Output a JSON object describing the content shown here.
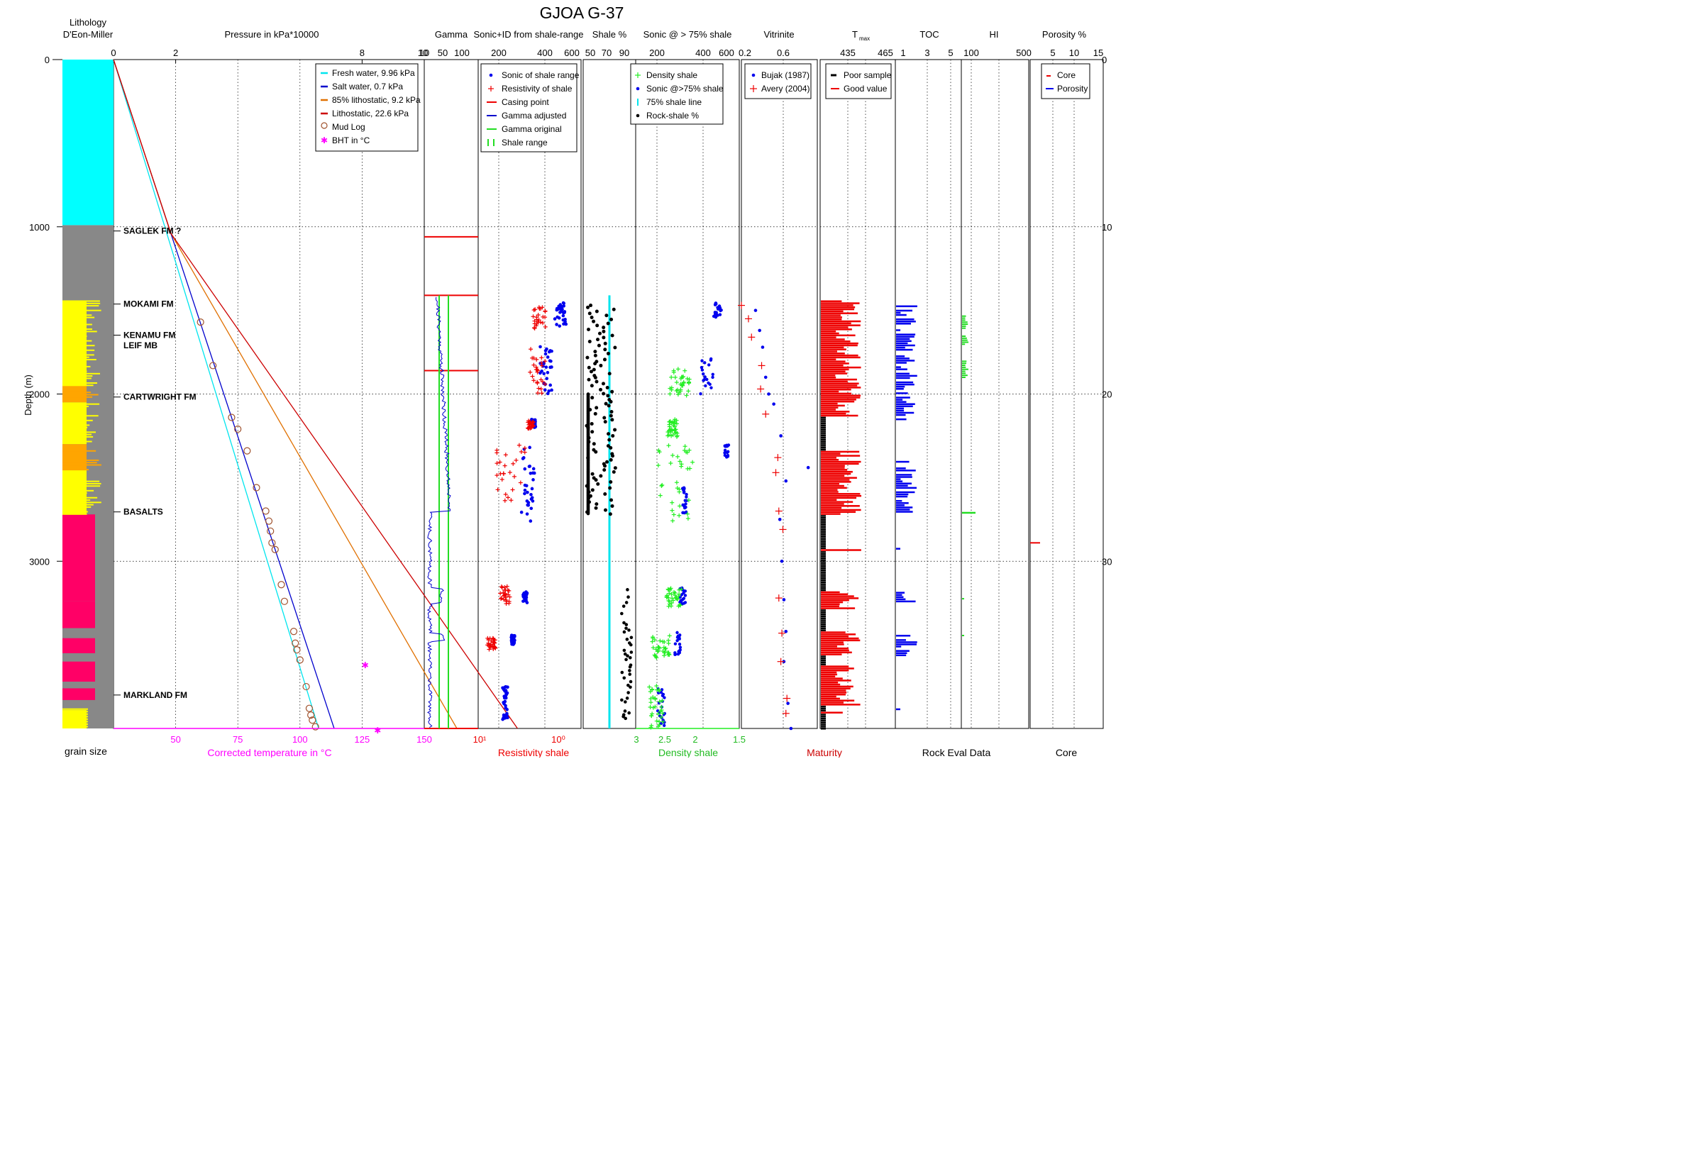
{
  "chart_data": {
    "type": "line",
    "title": "GJOA G-37",
    "y_axis": {
      "label": "Depth (m)",
      "range_m": [
        0,
        4000
      ],
      "ticks": [
        "0",
        "1000",
        "2000",
        "3000"
      ],
      "right_ticks": [
        "0",
        "10",
        "20",
        "30"
      ]
    },
    "lithology": {
      "header": [
        "Lithology",
        "D'Eon-Miller"
      ],
      "bottom_label": "grain size",
      "intervals": [
        {
          "from": 0,
          "to": 990,
          "color": "#00FFFF"
        },
        {
          "from": 1440,
          "to": 1950,
          "color": "#FFFF00"
        },
        {
          "from": 1950,
          "to": 2050,
          "color": "#FFA500"
        },
        {
          "from": 2050,
          "to": 2300,
          "color": "#FFFF00"
        },
        {
          "from": 2300,
          "to": 2450,
          "color": "#FFA500"
        },
        {
          "from": 2450,
          "to": 2720,
          "color": "#FFFF00"
        },
        {
          "from": 2720,
          "to": 3240,
          "color": "#FF0066"
        },
        {
          "from": 3240,
          "to": 3400,
          "color": "#FF0066"
        },
        {
          "from": 3460,
          "to": 3550,
          "color": "#FF0066"
        },
        {
          "from": 3600,
          "to": 3720,
          "color": "#FF0066"
        },
        {
          "from": 3760,
          "to": 3830,
          "color": "#FF0066"
        },
        {
          "from": 3890,
          "to": 4000,
          "color": "#FFFF00"
        }
      ]
    },
    "formations": [
      {
        "name": "SAGLEK FM ?",
        "depth": 1025
      },
      {
        "name": "MOKAMI FM",
        "depth": 1462
      },
      {
        "name": "KENAMU FM",
        "depth": 1648
      },
      {
        "name": "LEIF MB",
        "depth": 1710
      },
      {
        "name": "CARTWRIGHT FM",
        "depth": 2018
      },
      {
        "name": "BASALTS",
        "depth": 2705
      },
      {
        "name": "MARKLAND FM",
        "depth": 3800
      }
    ],
    "pressure": {
      "label": "Pressure in kPa*10000",
      "ticks": [
        "0",
        "2",
        "8",
        "10"
      ],
      "range": [
        0,
        10
      ],
      "bottom_axis": {
        "label": "Corrected temperature in °C",
        "ticks": [
          "50",
          "75",
          "100",
          "125",
          "150"
        ]
      },
      "legend": [
        {
          "label": "Fresh water, 9.96 kPa",
          "color": "#00E5EE",
          "kind": "line"
        },
        {
          "label": "Salt water, 0.7 kPa",
          "color": "#0000CC",
          "kind": "line"
        },
        {
          "label": "85% lithostatic, 9.2 kPa",
          "color": "#E07000",
          "kind": "line"
        },
        {
          "label": "Lithostatic, 22.6 kPa",
          "color": "#CC0000",
          "kind": "line"
        },
        {
          "label": "Mud Log",
          "color": "#A0522D",
          "kind": "circle"
        },
        {
          "label": "BHT in °C",
          "color": "#FF00FF",
          "kind": "star"
        }
      ],
      "series": [
        {
          "name": "Fresh water, 9.96 kPa",
          "points": [
            [
              0,
              0
            ],
            [
              6.6,
              4000
            ]
          ]
        },
        {
          "name": "Salt water, 0.7 kPa",
          "points": [
            [
              0,
              0
            ],
            [
              7.1,
              4000
            ]
          ]
        },
        {
          "name": "85% lithostatic, 9.2 kPa",
          "points": [
            [
              0,
              0
            ],
            [
              1.85,
              1040
            ],
            [
              11.05,
              4000
            ]
          ]
        },
        {
          "name": "Lithostatic, 22.6 kPa",
          "points": [
            [
              0,
              0
            ],
            [
              1.85,
              1040
            ],
            [
              13.0,
              4000
            ]
          ]
        }
      ],
      "mud_log": [
        [
          2.8,
          1570
        ],
        [
          3.2,
          1830
        ],
        [
          3.8,
          2140
        ],
        [
          4.0,
          2210
        ],
        [
          4.3,
          2340
        ],
        [
          4.6,
          2560
        ],
        [
          4.9,
          2700
        ],
        [
          5.0,
          2760
        ],
        [
          5.05,
          2820
        ],
        [
          5.1,
          2890
        ],
        [
          5.2,
          2930
        ],
        [
          5.4,
          3140
        ],
        [
          5.5,
          3240
        ],
        [
          5.8,
          3420
        ],
        [
          5.85,
          3490
        ],
        [
          5.9,
          3530
        ],
        [
          6.0,
          3590
        ],
        [
          6.2,
          3750
        ],
        [
          6.3,
          3880
        ],
        [
          6.35,
          3920
        ],
        [
          6.4,
          3950
        ],
        [
          6.5,
          3990
        ]
      ],
      "bht": [
        [
          8.1,
          3610
        ],
        [
          8.5,
          4000
        ]
      ]
    },
    "gamma": {
      "label": "Gamma",
      "ticks": [
        "50",
        "100"
      ],
      "casing_points": [
        1060,
        1410,
        1860,
        4000
      ],
      "shale_range": [
        35,
        60
      ]
    },
    "sonic": {
      "label": "Sonic+ID from shale-range",
      "ticks": [
        "200",
        "400",
        "600"
      ],
      "bottom_label": "Resistivity shale",
      "bottom_ticks": [
        "10¹",
        "10⁰"
      ],
      "legend": [
        "Sonic of shale range",
        "Resistivity of shale",
        "Casing point",
        "Gamma adjusted",
        "Gamma original",
        "Shale range"
      ]
    },
    "shale": {
      "label": "Shale %",
      "ticks": [
        "50",
        "70",
        "90"
      ],
      "line_75": 75
    },
    "sonic75": {
      "label": "Sonic @ > 75% shale",
      "ticks": [
        "200",
        "400",
        "600"
      ],
      "bottom_label": "Density shale",
      "bottom_ticks": [
        "3",
        "2.5",
        "2",
        "1.5"
      ],
      "legend": [
        "Density shale",
        "Sonic @>75% shale",
        "75% shale line",
        "Rock-shale %"
      ]
    },
    "vitrinite": {
      "label": "Vitrinite",
      "ticks": [
        "0.2",
        "0.6"
      ],
      "legend": [
        "Bujak (1987)",
        "Avery (2004)"
      ],
      "bottom_label": "Maturity",
      "bujak": [
        [
          0.34,
          1500
        ],
        [
          0.38,
          1620
        ],
        [
          0.41,
          1720
        ],
        [
          0.44,
          1900
        ],
        [
          0.47,
          2000
        ],
        [
          0.52,
          2060
        ],
        [
          0.59,
          2250
        ],
        [
          0.86,
          2440
        ],
        [
          0.64,
          2520
        ],
        [
          0.58,
          2750
        ],
        [
          0.6,
          3000
        ],
        [
          0.62,
          3230
        ],
        [
          0.64,
          3420
        ],
        [
          0.62,
          3600
        ],
        [
          0.66,
          3850
        ],
        [
          0.69,
          4000
        ]
      ],
      "avery": [
        [
          0.2,
          1470
        ],
        [
          0.27,
          1550
        ],
        [
          0.3,
          1660
        ],
        [
          0.4,
          1830
        ],
        [
          0.39,
          1970
        ],
        [
          0.44,
          2120
        ],
        [
          0.56,
          2380
        ],
        [
          0.54,
          2470
        ],
        [
          0.57,
          2700
        ],
        [
          0.61,
          2810
        ],
        [
          0.57,
          3220
        ],
        [
          0.6,
          3430
        ],
        [
          0.59,
          3600
        ],
        [
          0.65,
          3820
        ],
        [
          0.64,
          3910
        ]
      ]
    },
    "tmax": {
      "label": "T",
      "label_sub": "max",
      "ticks": [
        "435",
        "465"
      ],
      "legend": [
        "Poor sample",
        "Good value"
      ]
    },
    "toc": {
      "label": "TOC",
      "ticks": [
        "1",
        "3",
        "5"
      ],
      "bottom_label": "Rock Eval Data"
    },
    "hi": {
      "label": "HI",
      "ticks": [
        "100",
        "500"
      ]
    },
    "porosity": {
      "label": "Porosity %",
      "ticks": [
        "5",
        "10",
        "15"
      ],
      "legend": [
        "Core",
        "Porosity"
      ],
      "bottom_label": "Core",
      "core_points": [
        [
          3.0,
          2890
        ]
      ]
    }
  }
}
